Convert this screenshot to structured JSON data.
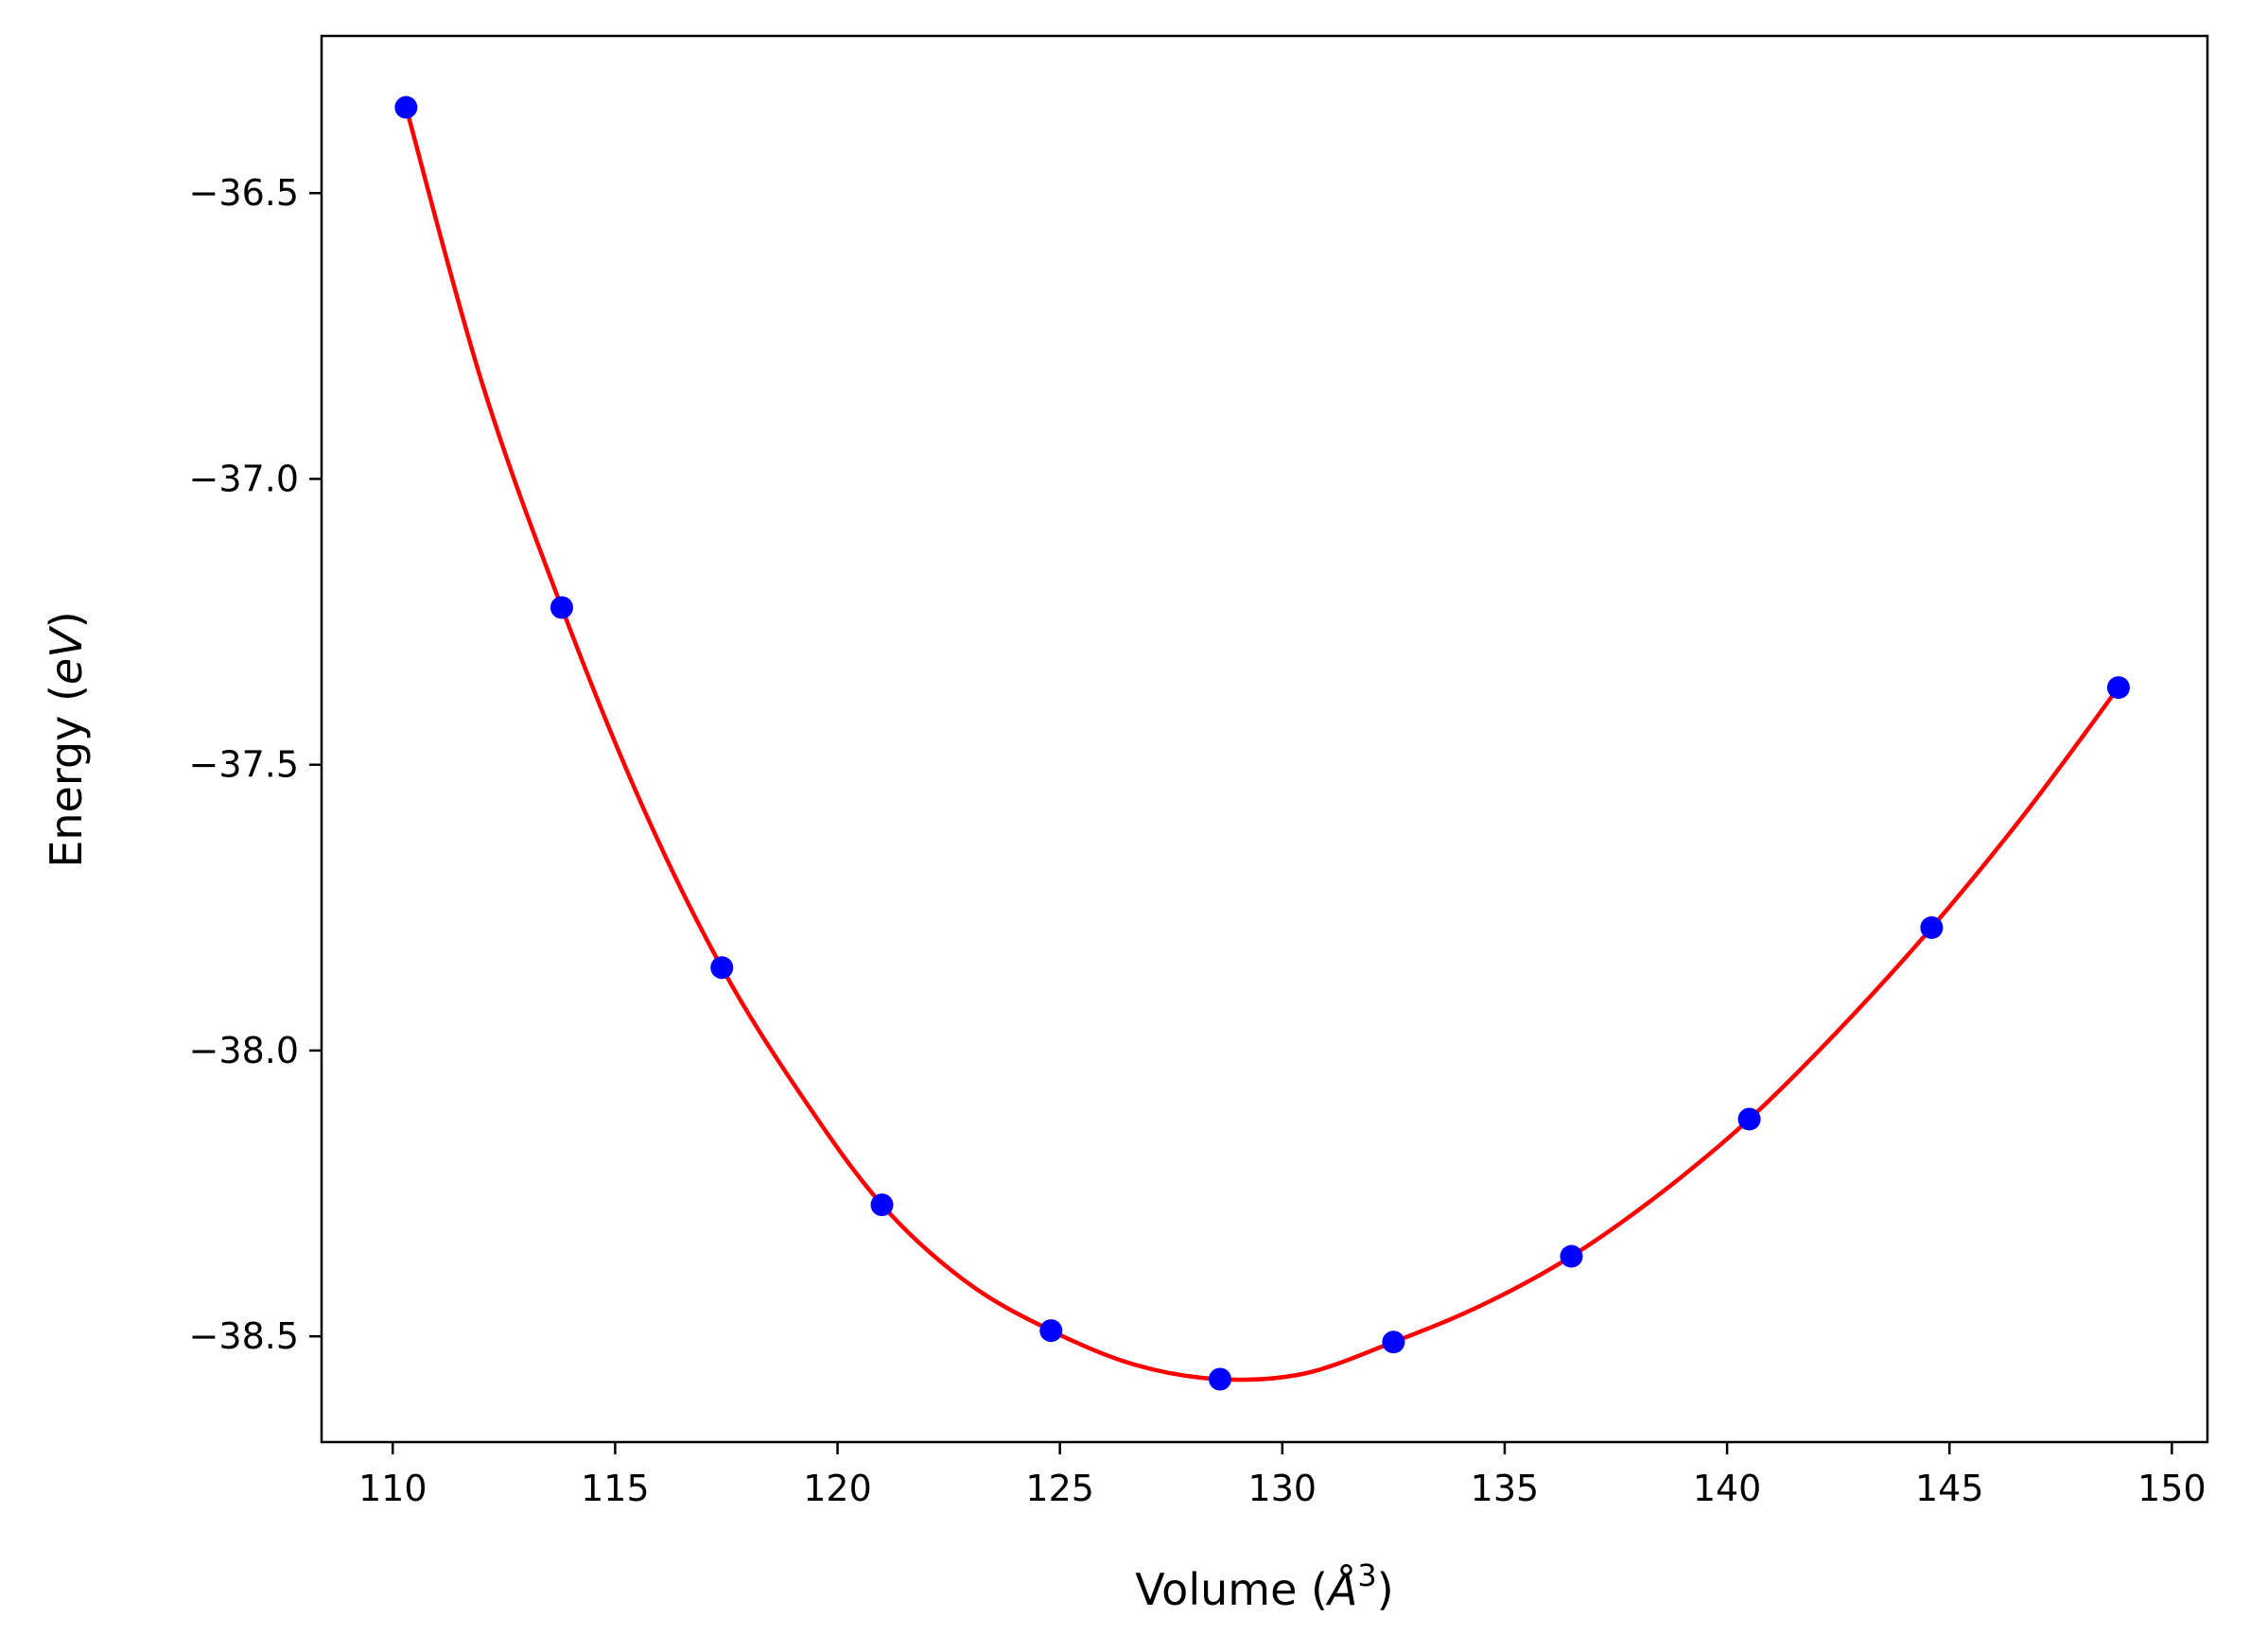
{
  "chart_data": {
    "type": "scatter",
    "title": "",
    "xlabel_main": "Volume (",
    "xlabel_italic": "Å",
    "xlabel_sup": "3",
    "xlabel_close": ")",
    "ylabel_main": "Energy (",
    "ylabel_italic": "eV",
    "ylabel_close": ")",
    "xlim": [
      108.4,
      150.8
    ],
    "ylim": [
      -38.685,
      -36.225
    ],
    "xticks": [
      110,
      115,
      120,
      125,
      130,
      135,
      140,
      145,
      150
    ],
    "xtick_labels": [
      "110",
      "115",
      "120",
      "125",
      "130",
      "135",
      "140",
      "145",
      "150"
    ],
    "yticks": [
      -36.5,
      -37.0,
      -37.5,
      -38.0,
      -38.5
    ],
    "ytick_labels": [
      "−36.5",
      "−37.0",
      "−37.5",
      "−38.0",
      "−38.5"
    ],
    "grid": false,
    "series": [
      {
        "style": "markers",
        "color": "#0000ff",
        "x": [
          110.3,
          113.8,
          117.4,
          121.0,
          124.8,
          128.6,
          132.5,
          136.5,
          140.5,
          144.6,
          148.8
        ],
        "y": [
          -36.35,
          -37.225,
          -37.855,
          -38.27,
          -38.49,
          -38.575,
          -38.51,
          -38.36,
          -38.12,
          -37.785,
          -37.365
        ]
      },
      {
        "style": "line",
        "color": "#ff0000",
        "x": [
          110.3,
          112.0,
          113.8,
          115.6,
          117.4,
          119.2,
          121.0,
          122.9,
          124.8,
          126.7,
          128.6,
          130.5,
          132.5,
          134.5,
          136.5,
          138.5,
          140.5,
          142.5,
          144.6,
          146.7,
          148.8
        ],
        "y": [
          -36.35,
          -36.83,
          -37.225,
          -37.57,
          -37.855,
          -38.08,
          -38.27,
          -38.405,
          -38.49,
          -38.55,
          -38.575,
          -38.565,
          -38.51,
          -38.445,
          -38.36,
          -38.25,
          -38.12,
          -37.965,
          -37.785,
          -37.585,
          -37.365
        ]
      }
    ]
  }
}
